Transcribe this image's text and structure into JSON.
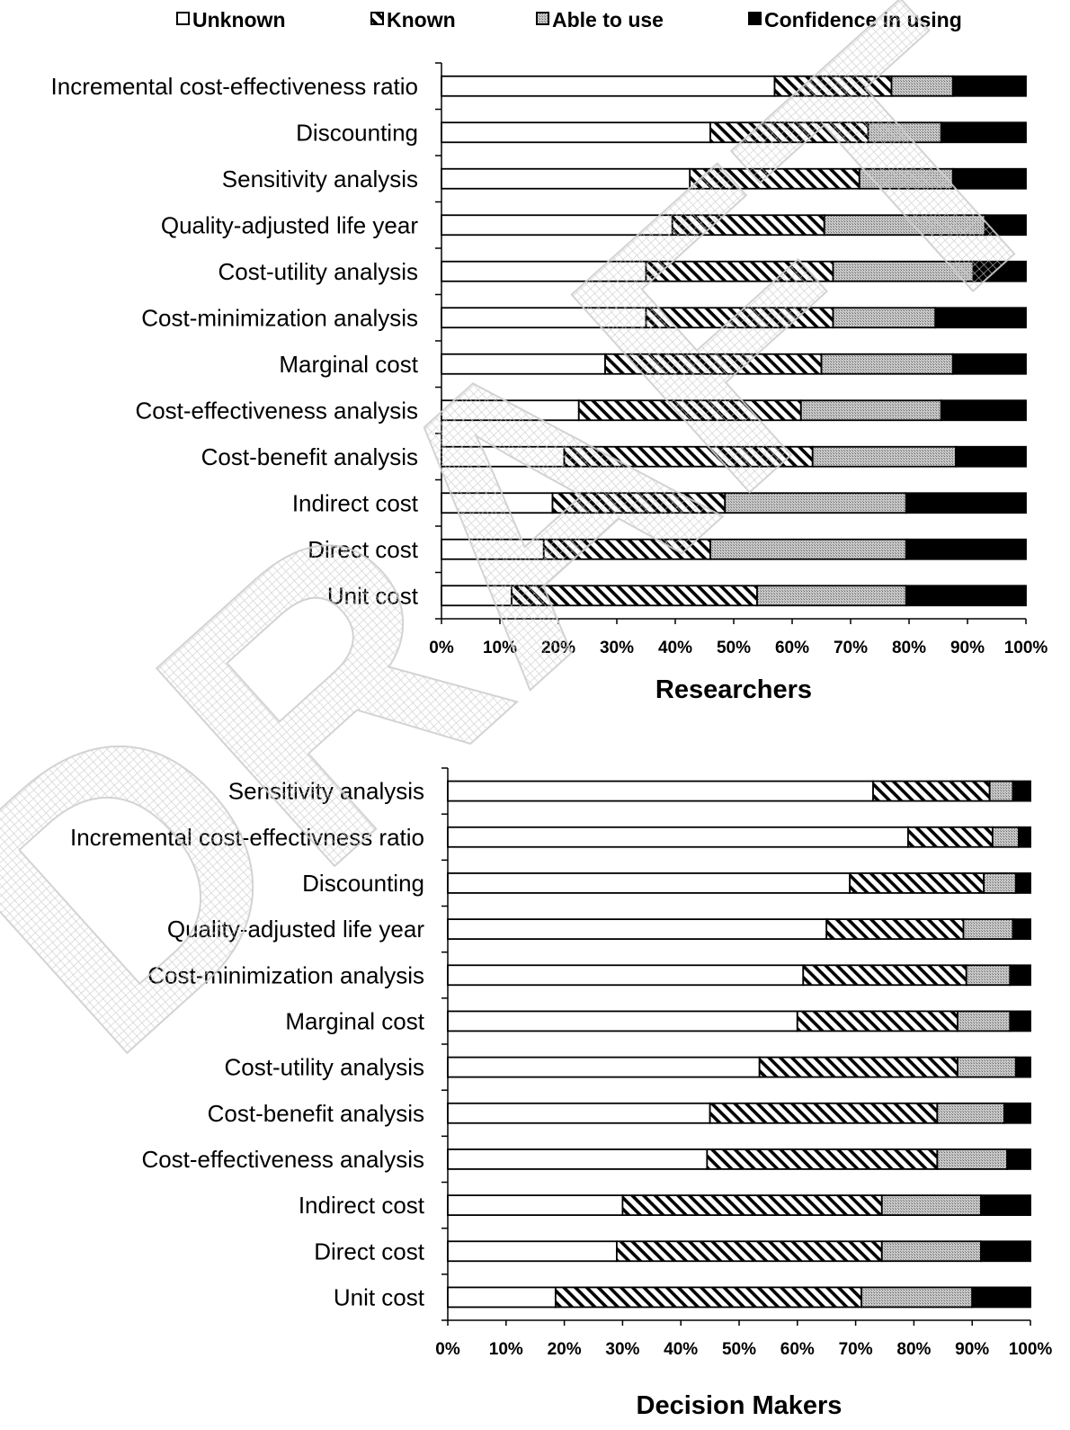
{
  "legend": [
    {
      "key": "unknown",
      "label": "Unknown"
    },
    {
      "key": "known",
      "label": "Known"
    },
    {
      "key": "able",
      "label": "Able to use"
    },
    {
      "key": "confidence",
      "label": "Confidence in using"
    }
  ],
  "watermark": "DRAFT",
  "chart_data": [
    {
      "type": "bar",
      "orientation": "horizontal",
      "stacked": "percent",
      "title": "Researchers",
      "xlim": [
        0,
        100
      ],
      "xticks": [
        "0%",
        "10%",
        "20%",
        "30%",
        "40%",
        "50%",
        "60%",
        "70%",
        "80%",
        "90%",
        "100%"
      ],
      "categories": [
        "Incremental cost-effectiveness ratio",
        "Discounting",
        "Sensitivity analysis",
        "Quality-adjusted life year",
        "Cost-utility analysis",
        "Cost-minimization analysis",
        "Marginal cost",
        "Cost-effectiveness analysis",
        "Cost-benefit analysis",
        "Indirect cost",
        "Direct cost",
        "Unit cost"
      ],
      "series": [
        {
          "name": "Unknown",
          "values": [
            57,
            46,
            42.5,
            39.5,
            35,
            35,
            28,
            23.5,
            21,
            19,
            17.5,
            12
          ]
        },
        {
          "name": "Known",
          "values": [
            20,
            27,
            29,
            26,
            32,
            32,
            37,
            38,
            42.5,
            29.5,
            28.5,
            42
          ]
        },
        {
          "name": "Able to use",
          "values": [
            10.5,
            12.5,
            16,
            27.5,
            24,
            17.5,
            22.5,
            24,
            24.5,
            31,
            33.5,
            25.5
          ]
        },
        {
          "name": "Confidence in using",
          "values": [
            12.5,
            14.5,
            12.5,
            7,
            9,
            15.5,
            12.5,
            14.5,
            12,
            20.5,
            20.5,
            20.5
          ]
        }
      ]
    },
    {
      "type": "bar",
      "orientation": "horizontal",
      "stacked": "percent",
      "title": "Decision Makers",
      "xlim": [
        0,
        100
      ],
      "xticks": [
        "0%",
        "10%",
        "20%",
        "30%",
        "40%",
        "50%",
        "60%",
        "70%",
        "80%",
        "90%",
        "100%"
      ],
      "categories": [
        "Sensitivity analysis",
        "Incremental cost-effectivness ratio",
        "Discounting",
        "Quality-adjusted life year",
        "Cost-minimization analysis",
        "Marginal cost",
        "Cost-utility analysis",
        "Cost-benefit analysis",
        "Cost-effectiveness analysis",
        "Indirect cost",
        "Direct cost",
        "Unit cost"
      ],
      "series": [
        {
          "name": "Unknown",
          "values": [
            73,
            79,
            69,
            65,
            61,
            60,
            53.5,
            45,
            44.5,
            30,
            29,
            18.5
          ]
        },
        {
          "name": "Known",
          "values": [
            20,
            14.5,
            23,
            23.5,
            28,
            27.5,
            34,
            39,
            39.5,
            44.5,
            45.5,
            52.5
          ]
        },
        {
          "name": "Able to use",
          "values": [
            4,
            4.5,
            5.5,
            8.5,
            7.5,
            9,
            10,
            11.5,
            12,
            17,
            17,
            19
          ]
        },
        {
          "name": "Confidence in using",
          "values": [
            3,
            2,
            2.5,
            3,
            3.5,
            3.5,
            2.5,
            4.5,
            4,
            8.5,
            8.5,
            10
          ]
        }
      ]
    }
  ]
}
